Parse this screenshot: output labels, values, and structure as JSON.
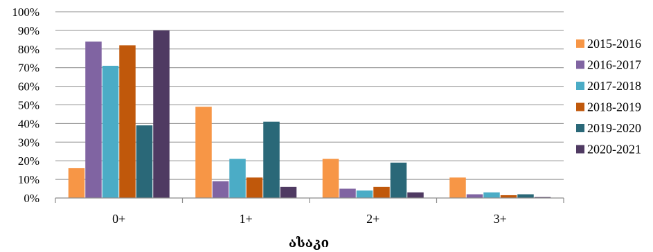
{
  "chart_data": {
    "type": "bar",
    "title": "",
    "xlabel": "ასაკი",
    "ylabel": "",
    "ylim": [
      0,
      100
    ],
    "y_tick_values": [
      0,
      10,
      20,
      30,
      40,
      50,
      60,
      70,
      80,
      90,
      100
    ],
    "y_tick_labels": [
      "0%",
      "10%",
      "20%",
      "30%",
      "40%",
      "50%",
      "60%",
      "70%",
      "80%",
      "90%",
      "100%"
    ],
    "grid": true,
    "legend_position": "right",
    "categories": [
      "0+",
      "1+",
      "2+",
      "3+"
    ],
    "series": [
      {
        "name": "2015-2016",
        "color": "#F79646",
        "values": [
          16,
          49,
          21,
          11
        ]
      },
      {
        "name": "2016-2017",
        "color": "#8064A2",
        "values": [
          84,
          9,
          5,
          2
        ]
      },
      {
        "name": "2017-2018",
        "color": "#4BACC6",
        "values": [
          71,
          21,
          4,
          3
        ]
      },
      {
        "name": "2018-2019",
        "color": "#C0580B",
        "values": [
          82,
          11,
          6,
          1.5
        ]
      },
      {
        "name": "2019-2020",
        "color": "#2A6878",
        "values": [
          39,
          41,
          19,
          2
        ]
      },
      {
        "name": "2020-2021",
        "color": "#4F3A62",
        "values": [
          90,
          6,
          3,
          0.5
        ]
      }
    ]
  }
}
